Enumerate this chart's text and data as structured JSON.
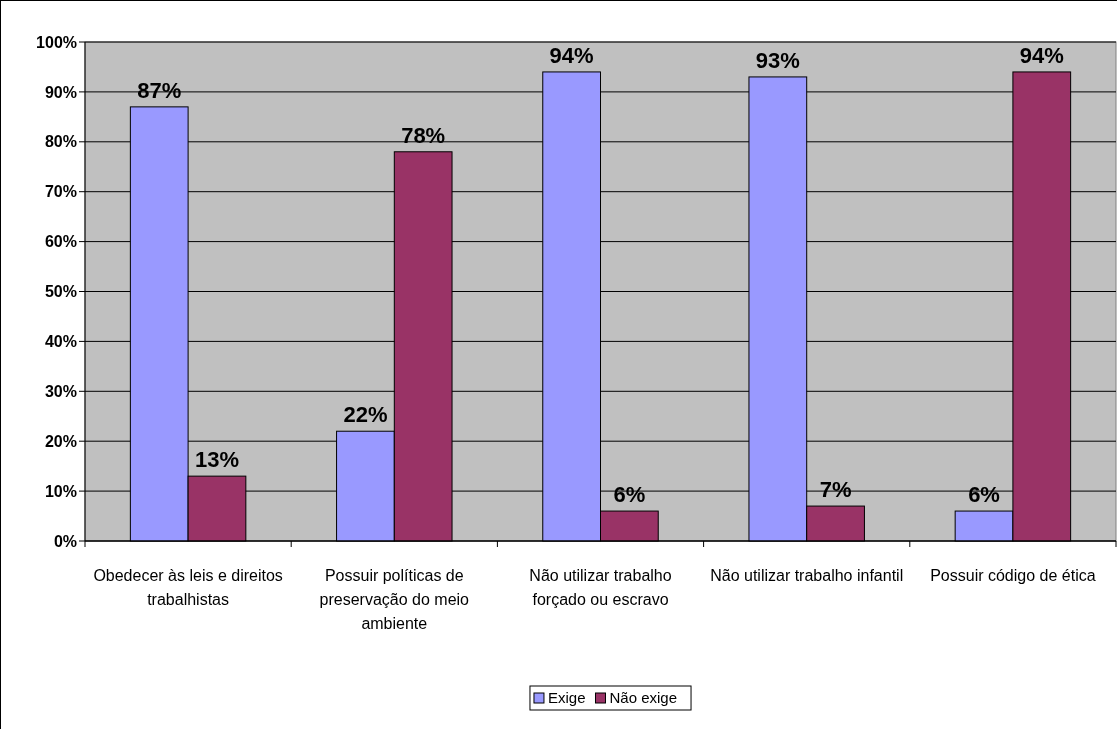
{
  "chart_data": {
    "type": "bar",
    "categories": [
      "Obedecer às leis e direitos trabalhistas",
      "Possuir políticas de preservação do meio ambiente",
      "Não utilizar trabalho forçado ou escravo",
      "Não utilizar trabalho infantil",
      "Possuir código de ética"
    ],
    "series": [
      {
        "name": "Exige",
        "color": "#9999ff",
        "values": [
          87,
          22,
          94,
          93,
          6
        ],
        "value_labels": [
          "87%",
          "22%",
          "94%",
          "93%",
          "6%"
        ]
      },
      {
        "name": "Não exige",
        "color": "#993366",
        "values": [
          13,
          78,
          6,
          7,
          94
        ],
        "value_labels": [
          "13%",
          "78%",
          "6%",
          "7%",
          "94%"
        ]
      }
    ],
    "ylim": [
      0,
      100
    ],
    "yticks": [
      {
        "value": 0,
        "label": "0%"
      },
      {
        "value": 10,
        "label": "10%"
      },
      {
        "value": 20,
        "label": "20%"
      },
      {
        "value": 30,
        "label": "30%"
      },
      {
        "value": 40,
        "label": "40%"
      },
      {
        "value": 50,
        "label": "50%"
      },
      {
        "value": 60,
        "label": "60%"
      },
      {
        "value": 70,
        "label": "70%"
      },
      {
        "value": 80,
        "label": "80%"
      },
      {
        "value": 90,
        "label": "90%"
      },
      {
        "value": 100,
        "label": "100%"
      }
    ],
    "grid": "y",
    "legend": "bottom"
  }
}
